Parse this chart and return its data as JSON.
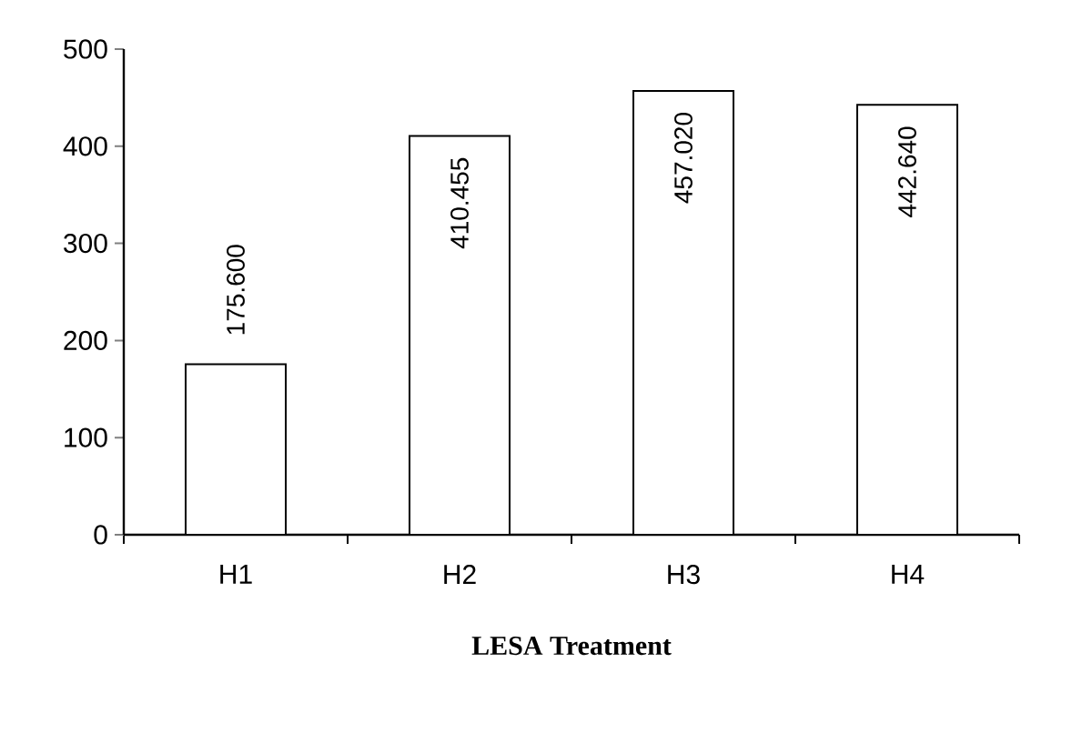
{
  "chart_data": {
    "type": "bar",
    "xlabel": "LESA Treatment",
    "categories": [
      "H1",
      "H2",
      "H3",
      "H4"
    ],
    "values": [
      175.6,
      410.455,
      457.02,
      442.64
    ],
    "value_labels": [
      "175.600",
      "410.455",
      "457.020",
      "442.640"
    ],
    "color": "#ffffff",
    "ylim": [
      0,
      500
    ],
    "yticks": [
      0,
      100,
      200,
      300,
      400,
      500
    ]
  }
}
